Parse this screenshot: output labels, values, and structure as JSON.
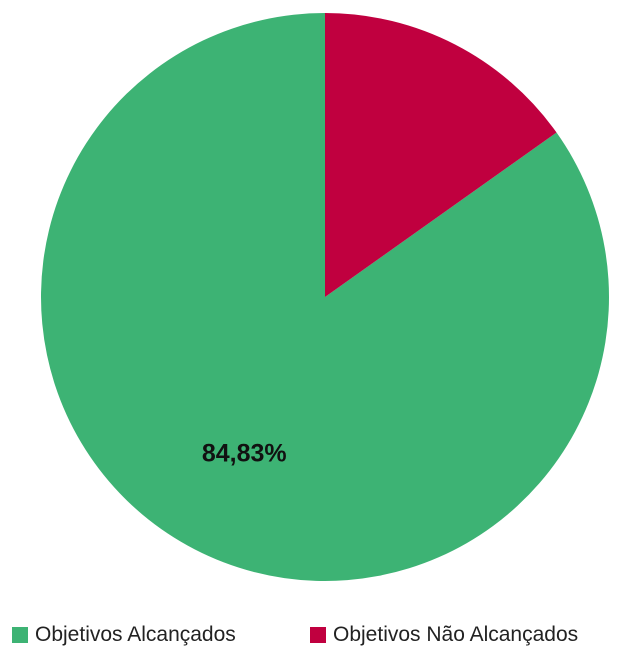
{
  "chart_data": {
    "type": "pie",
    "title": "",
    "slices": [
      {
        "name": "Objetivos Alcançados",
        "value": 84.83,
        "label": "84,83%",
        "color": "#3db374"
      },
      {
        "name": "Objetivos Não Alcançados",
        "value": 15.17,
        "label": "",
        "color": "#c0003f"
      }
    ],
    "legend_position": "bottom"
  },
  "legend": {
    "items": [
      {
        "label": "Objetivos Alcançados",
        "color": "#3db374"
      },
      {
        "label": "Objetivos Não Alcançados",
        "color": "#c0003f"
      }
    ]
  }
}
